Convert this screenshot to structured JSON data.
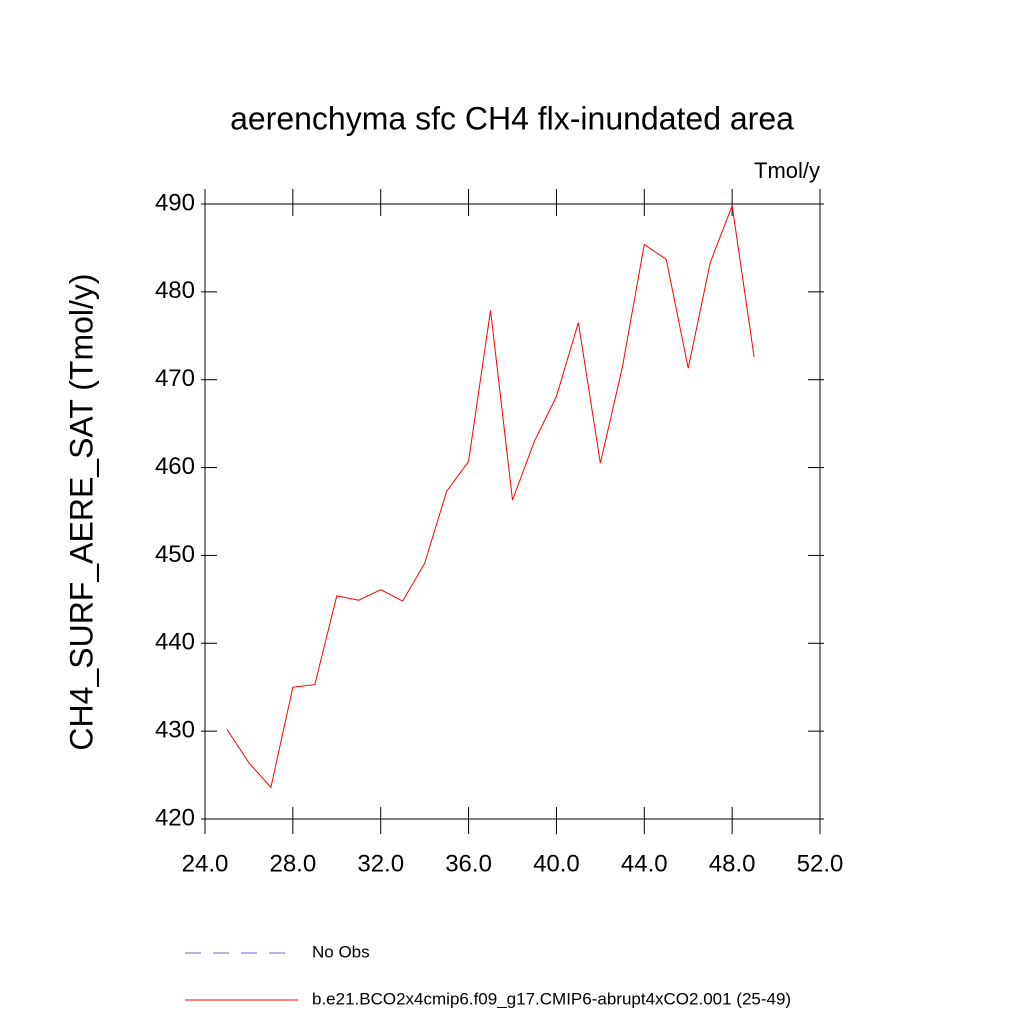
{
  "chart_data": {
    "type": "line",
    "title": "aerenchyma sfc CH4 flx-inundated area",
    "units": "Tmol/y",
    "y_label": "CH4_SURF_AERE_SAT  (Tmol/y)",
    "x": [
      25,
      26,
      27,
      28,
      29,
      30,
      31,
      32,
      33,
      34,
      35,
      36,
      37,
      38,
      39,
      40,
      41,
      42,
      43,
      44,
      45,
      46,
      47,
      48,
      49
    ],
    "series": [
      {
        "name": "b.e21.BCO2x4cmip6.f09_g17.CMIP6-abrupt4xCO2.001 (25-49)",
        "color": "#ff0000",
        "values": [
          430.2,
          426.4,
          423.6,
          435.0,
          435.3,
          445.4,
          444.9,
          446.1,
          444.8,
          449.1,
          457.3,
          460.7,
          477.9,
          456.3,
          463.0,
          468.1,
          476.5,
          460.5,
          471.4,
          485.4,
          483.7,
          471.3,
          483.3,
          489.8,
          472.6
        ]
      }
    ],
    "reference_series": {
      "name": "No Obs",
      "color": "#6a6ad0",
      "dashed": true
    },
    "xlim": [
      24,
      52
    ],
    "xticks": [
      {
        "value": 24,
        "label": "24.0"
      },
      {
        "value": 28,
        "label": "28.0"
      },
      {
        "value": 32,
        "label": "32.0"
      },
      {
        "value": 36,
        "label": "36.0"
      },
      {
        "value": 40,
        "label": "40.0"
      },
      {
        "value": 44,
        "label": "44.0"
      },
      {
        "value": 48,
        "label": "48.0"
      },
      {
        "value": 52,
        "label": "52.0"
      }
    ],
    "ylim": [
      420,
      490
    ],
    "yticks": [
      420,
      430,
      440,
      450,
      460,
      470,
      480,
      490
    ]
  }
}
